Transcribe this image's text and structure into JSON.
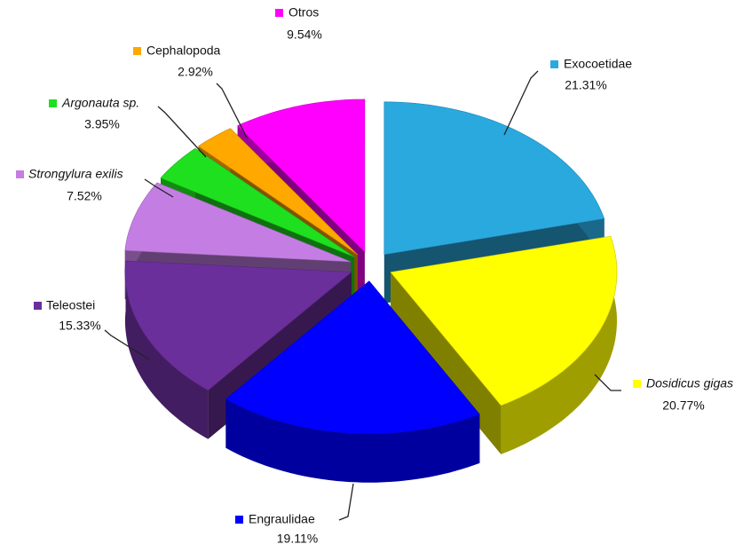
{
  "chart_data": {
    "type": "pie3d",
    "categories": [
      "Exocoetidae",
      "Dosidicus gigas",
      "Engraulidae",
      "Teleostei",
      "Strongylura exilis",
      "Argonauta sp.",
      "Cephalopoda",
      "Otros"
    ],
    "values": [
      21.31,
      20.77,
      19.11,
      15.33,
      7.52,
      3.95,
      2.92,
      9.54
    ],
    "value_labels": [
      "21.31%",
      "20.77%",
      "19.11%",
      "15.33%",
      "7.52%",
      "3.95%",
      "2.92%",
      "9.54%"
    ],
    "colors": [
      "#2aa9df",
      "#ffff00",
      "#0000ff",
      "#6b2f9c",
      "#c47ee3",
      "#1fe01f",
      "#ffa800",
      "#ff00ff"
    ]
  }
}
